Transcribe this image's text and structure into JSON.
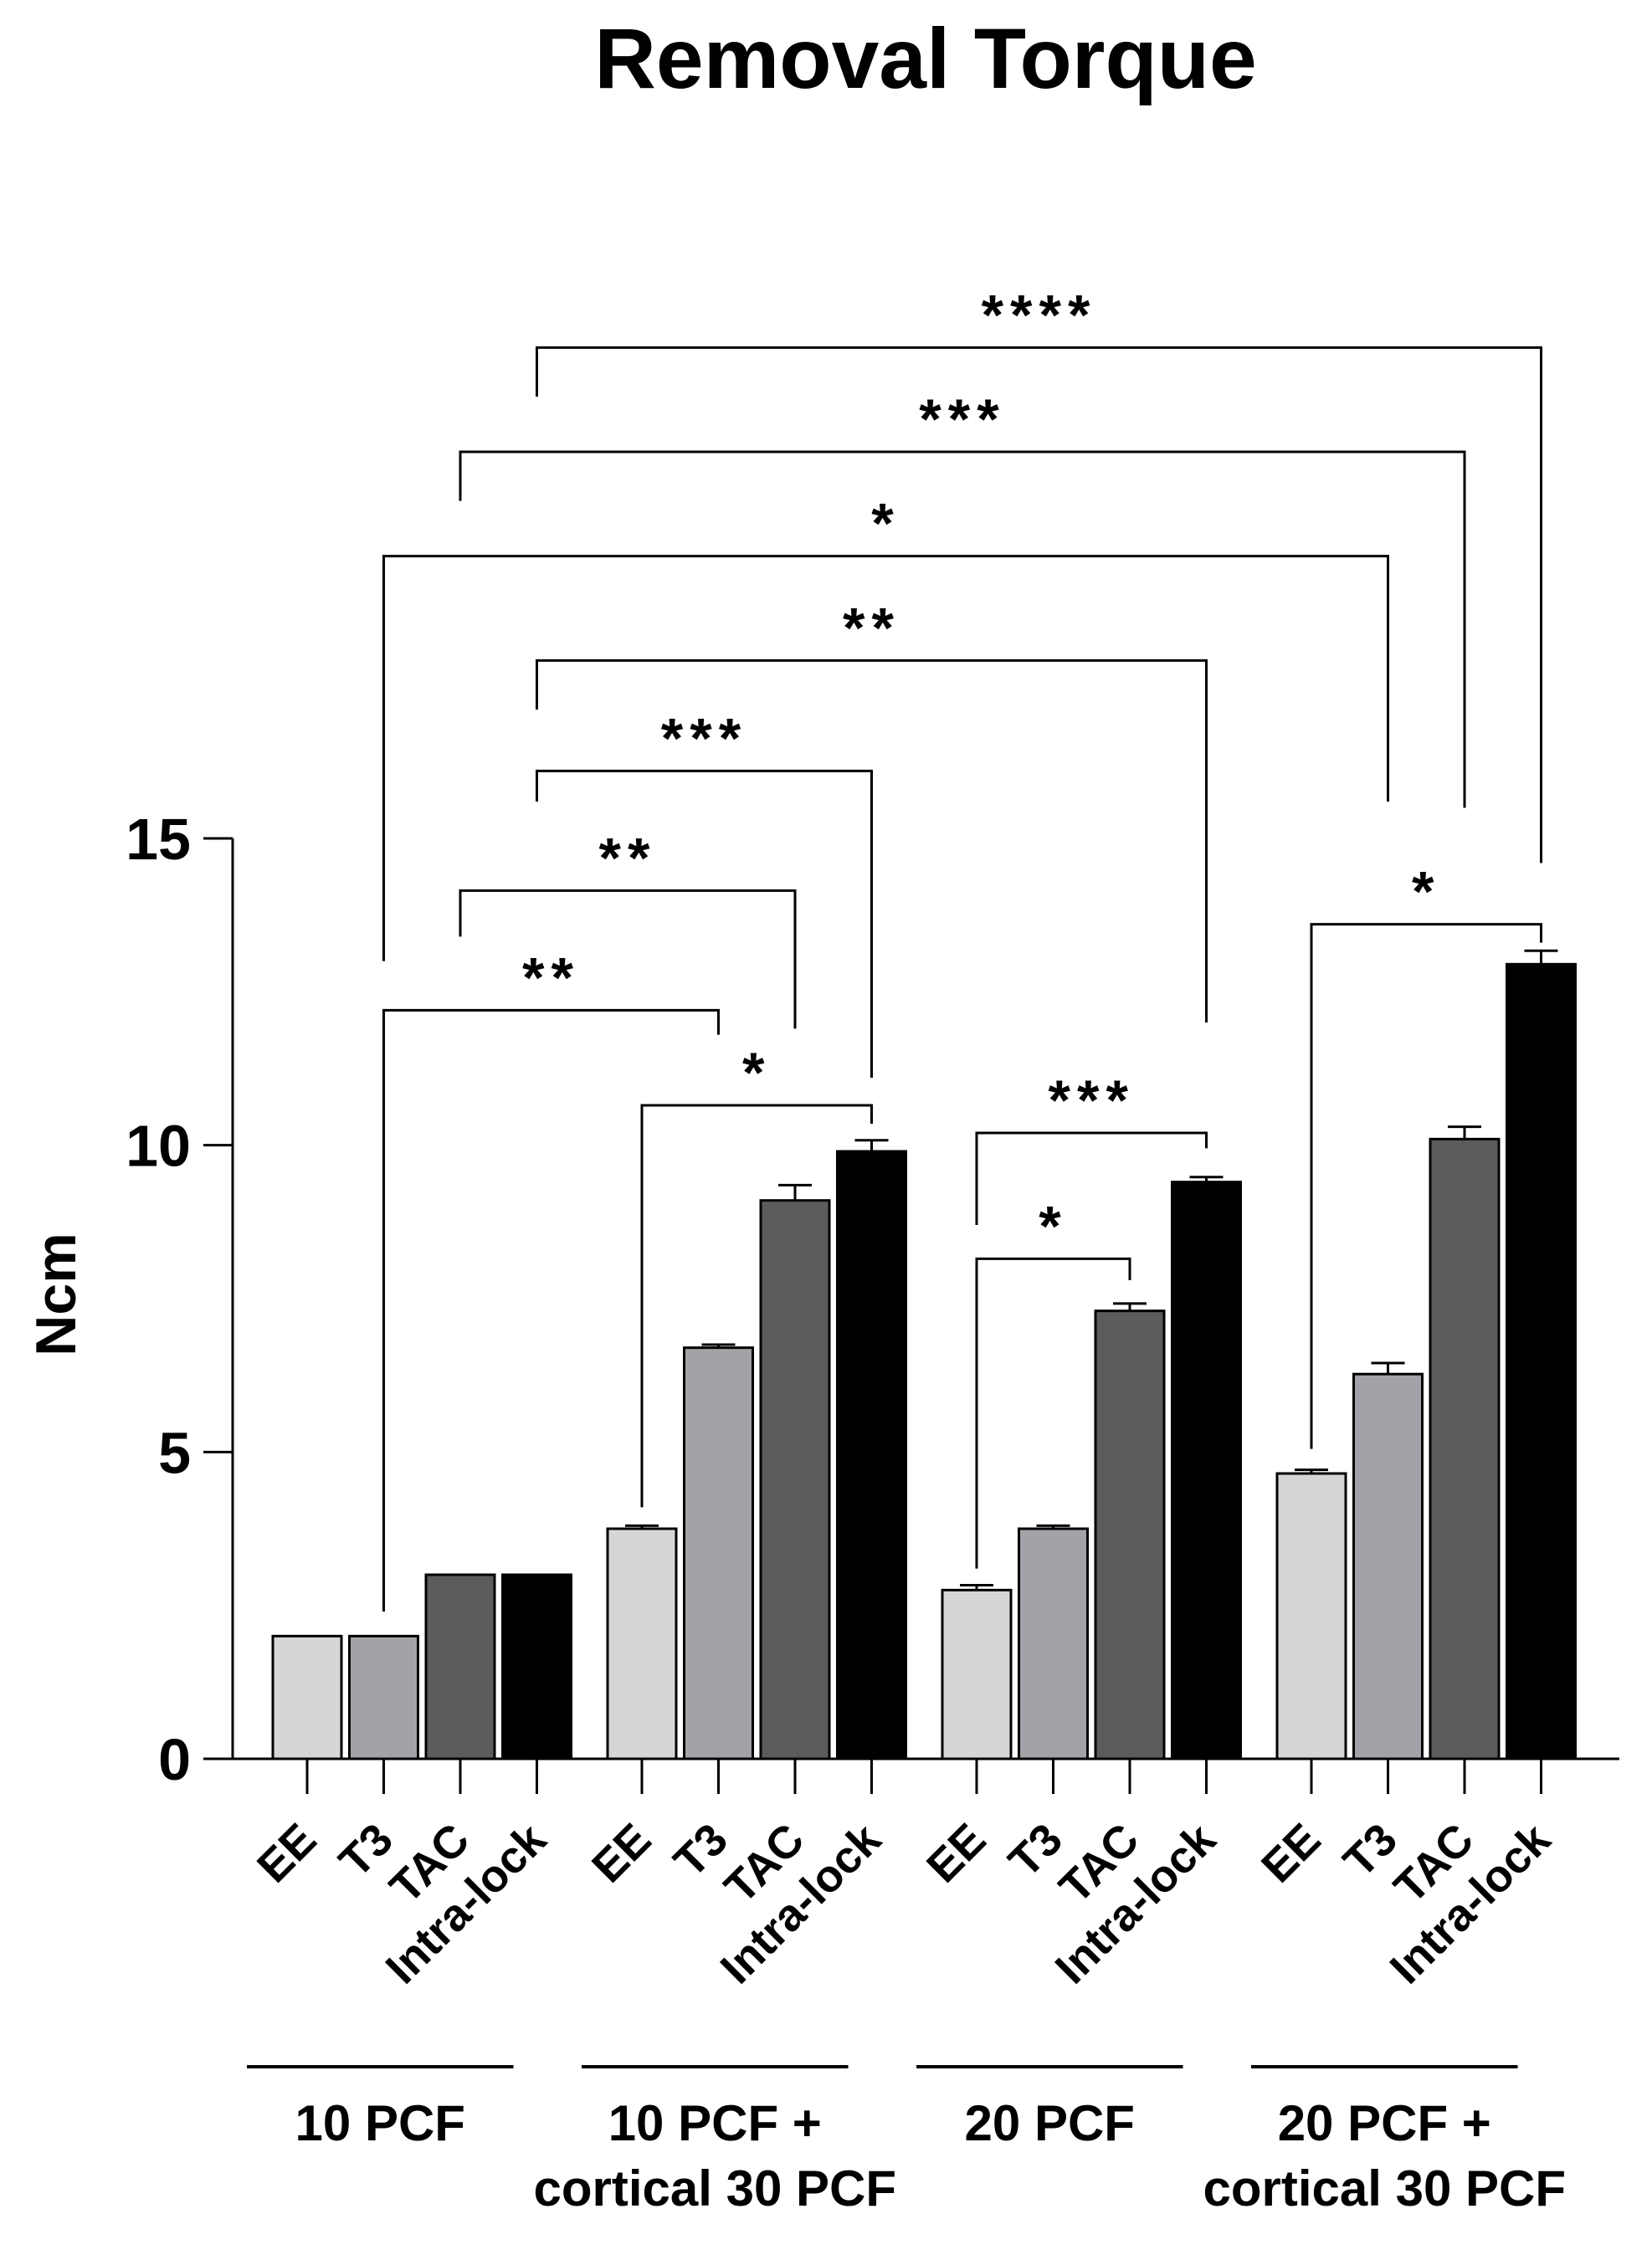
{
  "chart_data": {
    "type": "bar",
    "title": "Removal Torque",
    "xlabel": "",
    "ylabel": "Ncm",
    "ylim": [
      0,
      15
    ],
    "yticks": [
      0,
      5,
      10,
      15
    ],
    "grid": false,
    "legend": "none",
    "series_colors": {
      "EE": "#d6d6d6",
      "T3": "#a3a2a8",
      "TAC": "#5c5c5c",
      "Intra-lock": "#000000"
    },
    "groups": [
      {
        "label_lines": [
          "10 PCF"
        ],
        "bars": [
          {
            "category": "EE",
            "value": 2.0,
            "error": 0.0
          },
          {
            "category": "T3",
            "value": 2.0,
            "error": 0.0
          },
          {
            "category": "TAC",
            "value": 3.0,
            "error": 0.0
          },
          {
            "category": "Intra-lock",
            "value": 3.0,
            "error": 0.0
          }
        ]
      },
      {
        "label_lines": [
          "10 PCF +",
          "cortical 30 PCF"
        ],
        "bars": [
          {
            "category": "EE",
            "value": 3.75,
            "error": 0.05
          },
          {
            "category": "T3",
            "value": 6.7,
            "error": 0.05
          },
          {
            "category": "TAC",
            "value": 9.1,
            "error": 0.25
          },
          {
            "category": "Intra-lock",
            "value": 9.9,
            "error": 0.18
          }
        ]
      },
      {
        "label_lines": [
          "20 PCF"
        ],
        "bars": [
          {
            "category": "EE",
            "value": 2.75,
            "error": 0.08
          },
          {
            "category": "T3",
            "value": 3.75,
            "error": 0.05
          },
          {
            "category": "TAC",
            "value": 7.3,
            "error": 0.12
          },
          {
            "category": "Intra-lock",
            "value": 9.4,
            "error": 0.08
          }
        ]
      },
      {
        "label_lines": [
          "20 PCF +",
          "cortical 30 PCF"
        ],
        "bars": [
          {
            "category": "EE",
            "value": 4.65,
            "error": 0.06
          },
          {
            "category": "T3",
            "value": 6.27,
            "error": 0.18
          },
          {
            "category": "TAC",
            "value": 10.1,
            "error": 0.2
          },
          {
            "category": "Intra-lock",
            "value": 12.95,
            "error": 0.22
          }
        ]
      }
    ],
    "significance": [
      {
        "label": "****",
        "from": [
          0,
          3
        ],
        "to": [
          3,
          3
        ],
        "level": 23.0,
        "drop_from": 22.2,
        "drop_to": 14.6
      },
      {
        "label": "***",
        "from": [
          0,
          2
        ],
        "to": [
          3,
          2
        ],
        "level": 21.3,
        "drop_from": 20.5,
        "drop_to": 15.5
      },
      {
        "label": "*",
        "from": [
          0,
          1
        ],
        "to": [
          3,
          1
        ],
        "level": 19.6,
        "drop_from": 13.0,
        "drop_to": 15.6
      },
      {
        "label": "**",
        "from": [
          0,
          3
        ],
        "to": [
          2,
          3
        ],
        "level": 17.9,
        "drop_from": 17.1,
        "drop_to": 12.0
      },
      {
        "label": "***",
        "from": [
          0,
          3
        ],
        "to": [
          1,
          3
        ],
        "level": 16.1,
        "drop_from": 15.6,
        "drop_to": 11.1
      },
      {
        "label": "**",
        "from": [
          0,
          2
        ],
        "to": [
          1,
          2
        ],
        "level": 14.15,
        "drop_from": 13.4,
        "drop_to": 11.9
      },
      {
        "label": "**",
        "from": [
          0,
          1
        ],
        "to": [
          1,
          1
        ],
        "level": 12.2,
        "drop_from": 2.4,
        "drop_to": 11.8
      },
      {
        "label": "*",
        "from": [
          1,
          0
        ],
        "to": [
          1,
          3
        ],
        "level": 10.65,
        "drop_from": 4.1,
        "drop_to": 10.35
      },
      {
        "label": "***",
        "from": [
          2,
          0
        ],
        "to": [
          2,
          3
        ],
        "level": 10.2,
        "drop_from": 8.7,
        "drop_to": 9.95
      },
      {
        "label": "*",
        "from": [
          2,
          0
        ],
        "to": [
          2,
          2
        ],
        "level": 8.15,
        "drop_from": 3.1,
        "drop_to": 7.8
      },
      {
        "label": "*",
        "from": [
          3,
          0
        ],
        "to": [
          3,
          3
        ],
        "level": 13.6,
        "drop_from": 5.05,
        "drop_to": 13.3
      }
    ]
  }
}
